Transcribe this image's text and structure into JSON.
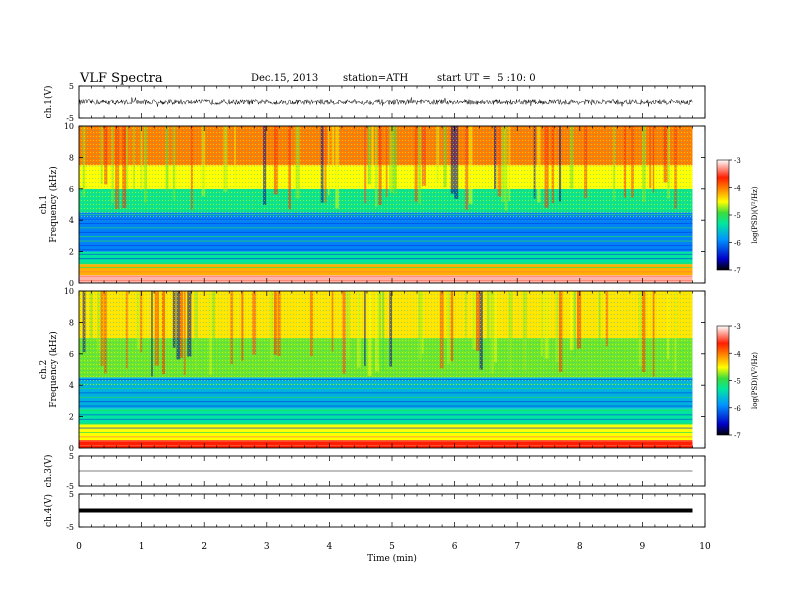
{
  "header": {
    "title": "VLF Spectra",
    "date": "Dec.15, 2013",
    "station": "station=ATH",
    "start": "start UT =  5 :10: 0"
  },
  "colorbar_label": "log(PSD)(V²/Hz)",
  "chart_data": [
    {
      "type": "line",
      "panel": "ch1-waveform",
      "ylabel": "ch.1(V)",
      "ylim": [
        -5,
        5
      ],
      "ytick_labels": [
        "5",
        "-5"
      ],
      "xlim": [
        0,
        10
      ],
      "description_values": {
        "x_end_min": 9.8,
        "center": 0,
        "envelope": [
          -0.8,
          0.8
        ]
      }
    },
    {
      "type": "heatmap",
      "panel": "ch1-spectrogram",
      "ylabel": "ch.1 Frequency (kHz)",
      "ylim": [
        0,
        10
      ],
      "ytick_labels": [
        "10",
        "8",
        "6",
        "4",
        "2",
        "0"
      ],
      "xlim": [
        0,
        10
      ],
      "x_end_min": 9.8,
      "colorbar": {
        "range": [
          -7,
          -3
        ],
        "tick_labels": [
          "-3",
          "-4",
          "-5",
          "-6",
          "-7"
        ],
        "colors": [
          "#000000",
          "#0000c8",
          "#0096ff",
          "#00e6a0",
          "#3cdc3c",
          "#ffff00",
          "#ff9600",
          "#ff1e00",
          "#ffffff"
        ]
      },
      "bands_khz_logpsd": [
        [
          0,
          0.5,
          -3.2
        ],
        [
          0.5,
          1.2,
          -4.2
        ],
        [
          1.2,
          2.0,
          -5.3
        ],
        [
          2.0,
          4.5,
          -6.0
        ],
        [
          4.5,
          6.0,
          -5.2
        ],
        [
          6.0,
          7.5,
          -4.5
        ],
        [
          7.5,
          10,
          -4.0
        ]
      ]
    },
    {
      "type": "heatmap",
      "panel": "ch2-spectrogram",
      "ylabel": "ch.2 Frequency (kHz)",
      "ylim": [
        0,
        10
      ],
      "ytick_labels": [
        "10",
        "8",
        "6",
        "4",
        "2",
        "0"
      ],
      "xlim": [
        0,
        10
      ],
      "x_end_min": 9.8,
      "colorbar": {
        "range": [
          -7,
          -3
        ],
        "tick_labels": [
          "-3",
          "-4",
          "-5",
          "-6",
          "-7"
        ],
        "colors": [
          "#000000",
          "#0000c8",
          "#0096ff",
          "#00e6a0",
          "#3cdc3c",
          "#ffff00",
          "#ff9600",
          "#ff1e00",
          "#ffffff"
        ]
      },
      "bands_khz_logpsd": [
        [
          0,
          0.5,
          -3.6
        ],
        [
          0.5,
          1.5,
          -4.5
        ],
        [
          1.5,
          2.5,
          -5.3
        ],
        [
          2.5,
          4.5,
          -5.7
        ],
        [
          4.5,
          7.0,
          -4.8
        ],
        [
          7.0,
          10,
          -4.4
        ]
      ]
    },
    {
      "type": "line",
      "panel": "ch3-waveform",
      "ylabel": "ch.3(V)",
      "ylim": [
        -5,
        5
      ],
      "ytick_labels": [
        "5",
        "-5"
      ],
      "xlim": [
        0,
        10
      ],
      "description_values": {
        "x_end_min": 9.8,
        "center": 0,
        "envelope": [
          0,
          0
        ]
      }
    },
    {
      "type": "line",
      "panel": "ch4-waveform",
      "ylabel": "ch.4(V)",
      "ylim": [
        -5,
        5
      ],
      "ytick_labels": [
        "5",
        "-5"
      ],
      "xlim": [
        0,
        10
      ],
      "xlabel": "Time (min)",
      "xtick_labels": [
        "0",
        "1",
        "2",
        "3",
        "4",
        "5",
        "6",
        "7",
        "8",
        "9",
        "10"
      ],
      "description_values": {
        "x_end_min": 9.8,
        "center": 0,
        "envelope": [
          -0.2,
          0.2
        ]
      }
    }
  ]
}
